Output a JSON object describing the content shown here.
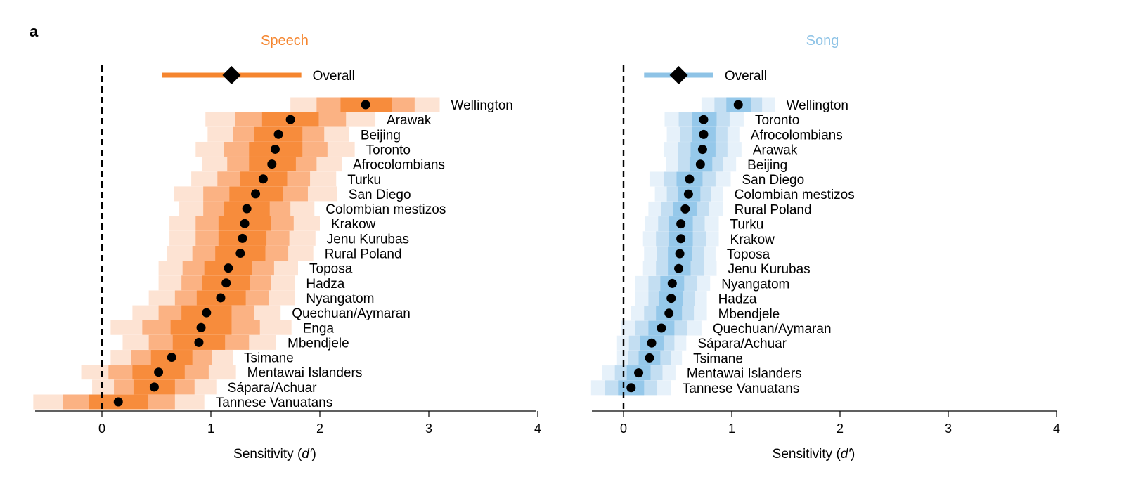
{
  "panel_label": "a",
  "chart_data": [
    {
      "type": "interval",
      "title": "Speech",
      "xlabel": "Sensitivity (d')",
      "xlim": [
        -0.63,
        4
      ],
      "xticks": [
        0,
        1,
        2,
        3,
        4
      ],
      "reference_line_x": 0,
      "color": "#f5852e",
      "overall": {
        "label": "Overall",
        "estimate": 1.19,
        "ci": [
          0.55,
          1.83
        ]
      },
      "series": [
        {
          "label": "Wellington",
          "estimate": 2.42,
          "bands": [
            [
              1.73,
              3.1
            ],
            [
              1.97,
              2.87
            ],
            [
              2.19,
              2.66
            ]
          ]
        },
        {
          "label": "Arawak",
          "estimate": 1.73,
          "bands": [
            [
              0.95,
              2.51
            ],
            [
              1.22,
              2.24
            ],
            [
              1.47,
              1.99
            ]
          ]
        },
        {
          "label": "Beijing",
          "estimate": 1.62,
          "bands": [
            [
              0.97,
              2.27
            ],
            [
              1.2,
              2.04
            ],
            [
              1.4,
              1.84
            ]
          ]
        },
        {
          "label": "Toronto",
          "estimate": 1.59,
          "bands": [
            [
              0.86,
              2.32
            ],
            [
              1.12,
              2.07
            ],
            [
              1.35,
              1.84
            ]
          ]
        },
        {
          "label": "Afrocolombians",
          "estimate": 1.56,
          "bands": [
            [
              0.92,
              2.2
            ],
            [
              1.15,
              1.97
            ],
            [
              1.35,
              1.78
            ]
          ]
        },
        {
          "label": "Turku",
          "estimate": 1.48,
          "bands": [
            [
              0.82,
              2.15
            ],
            [
              1.06,
              1.91
            ],
            [
              1.27,
              1.7
            ]
          ]
        },
        {
          "label": "San Diego",
          "estimate": 1.41,
          "bands": [
            [
              0.66,
              2.16
            ],
            [
              0.93,
              1.89
            ],
            [
              1.17,
              1.66
            ]
          ]
        },
        {
          "label": "Colombian mestizos",
          "estimate": 1.33,
          "bands": [
            [
              0.71,
              1.95
            ],
            [
              0.93,
              1.73
            ],
            [
              1.12,
              1.54
            ]
          ]
        },
        {
          "label": "Krakow",
          "estimate": 1.31,
          "bands": [
            [
              0.62,
              2.0
            ],
            [
              0.86,
              1.76
            ],
            [
              1.07,
              1.55
            ]
          ]
        },
        {
          "label": "Jenu Kurubas",
          "estimate": 1.29,
          "bands": [
            [
              0.62,
              1.96
            ],
            [
              0.86,
              1.72
            ],
            [
              1.07,
              1.51
            ]
          ]
        },
        {
          "label": "Rural Poland",
          "estimate": 1.27,
          "bands": [
            [
              0.6,
              1.94
            ],
            [
              0.83,
              1.71
            ],
            [
              1.04,
              1.5
            ]
          ]
        },
        {
          "label": "Toposa",
          "estimate": 1.16,
          "bands": [
            [
              0.52,
              1.8
            ],
            [
              0.74,
              1.58
            ],
            [
              0.94,
              1.38
            ]
          ]
        },
        {
          "label": "Hadza",
          "estimate": 1.14,
          "bands": [
            [
              0.52,
              1.77
            ],
            [
              0.73,
              1.55
            ],
            [
              0.92,
              1.36
            ]
          ]
        },
        {
          "label": "Nyangatom",
          "estimate": 1.09,
          "bands": [
            [
              0.43,
              1.77
            ],
            [
              0.67,
              1.53
            ],
            [
              0.87,
              1.32
            ]
          ]
        },
        {
          "label": "Quechuan/Aymaran",
          "estimate": 0.96,
          "bands": [
            [
              0.28,
              1.64
            ],
            [
              0.52,
              1.4
            ],
            [
              0.73,
              1.19
            ]
          ]
        },
        {
          "label": "Enga",
          "estimate": 0.91,
          "bands": [
            [
              0.08,
              1.74
            ],
            [
              0.37,
              1.45
            ],
            [
              0.63,
              1.19
            ]
          ]
        },
        {
          "label": "Mbendjele",
          "estimate": 0.89,
          "bands": [
            [
              0.19,
              1.6
            ],
            [
              0.43,
              1.35
            ],
            [
              0.65,
              1.13
            ]
          ]
        },
        {
          "label": "Tsimane",
          "estimate": 0.64,
          "bands": [
            [
              0.08,
              1.2
            ],
            [
              0.27,
              1.01
            ],
            [
              0.45,
              0.83
            ]
          ]
        },
        {
          "label": "Mentawai Islanders",
          "estimate": 0.52,
          "bands": [
            [
              -0.19,
              1.23
            ],
            [
              0.06,
              0.98
            ],
            [
              0.28,
              0.76
            ]
          ]
        },
        {
          "label": "Sápara/Achuar",
          "estimate": 0.48,
          "bands": [
            [
              -0.09,
              1.05
            ],
            [
              0.11,
              0.85
            ],
            [
              0.29,
              0.67
            ]
          ]
        },
        {
          "label": "Tannese Vanuatans",
          "estimate": 0.15,
          "bands": [
            [
              -0.63,
              0.94
            ],
            [
              -0.36,
              0.67
            ],
            [
              -0.12,
              0.42
            ]
          ]
        }
      ]
    },
    {
      "type": "interval",
      "title": "Song",
      "xlabel": "Sensitivity (d')",
      "xlim": [
        -0.3,
        4
      ],
      "xticks": [
        0,
        1,
        2,
        3,
        4
      ],
      "reference_line_x": 0,
      "color": "#8ec3e6",
      "overall": {
        "label": "Overall",
        "estimate": 0.51,
        "ci": [
          0.19,
          0.83
        ]
      },
      "series": [
        {
          "label": "Wellington",
          "estimate": 1.06,
          "bands": [
            [
              0.72,
              1.4
            ],
            [
              0.84,
              1.28
            ],
            [
              0.95,
              1.18
            ]
          ]
        },
        {
          "label": "Toronto",
          "estimate": 0.74,
          "bands": [
            [
              0.38,
              1.11
            ],
            [
              0.51,
              0.98
            ],
            [
              0.63,
              0.86
            ]
          ]
        },
        {
          "label": "Afrocolombians",
          "estimate": 0.74,
          "bands": [
            [
              0.4,
              1.07
            ],
            [
              0.52,
              0.96
            ],
            [
              0.63,
              0.85
            ]
          ]
        },
        {
          "label": "Arawak",
          "estimate": 0.73,
          "bands": [
            [
              0.37,
              1.09
            ],
            [
              0.5,
              0.96
            ],
            [
              0.62,
              0.85
            ]
          ]
        },
        {
          "label": "Beijing",
          "estimate": 0.71,
          "bands": [
            [
              0.39,
              1.04
            ],
            [
              0.5,
              0.92
            ],
            [
              0.61,
              0.82
            ]
          ]
        },
        {
          "label": "San Diego",
          "estimate": 0.61,
          "bands": [
            [
              0.24,
              0.99
            ],
            [
              0.37,
              0.85
            ],
            [
              0.49,
              0.73
            ]
          ]
        },
        {
          "label": "Colombian mestizos",
          "estimate": 0.6,
          "bands": [
            [
              0.29,
              0.92
            ],
            [
              0.4,
              0.81
            ],
            [
              0.5,
              0.71
            ]
          ]
        },
        {
          "label": "Rural Poland",
          "estimate": 0.57,
          "bands": [
            [
              0.23,
              0.92
            ],
            [
              0.35,
              0.79
            ],
            [
              0.46,
              0.68
            ]
          ]
        },
        {
          "label": "Turku",
          "estimate": 0.53,
          "bands": [
            [
              0.2,
              0.88
            ],
            [
              0.32,
              0.75
            ],
            [
              0.42,
              0.64
            ]
          ]
        },
        {
          "label": "Krakow",
          "estimate": 0.53,
          "bands": [
            [
              0.18,
              0.88
            ],
            [
              0.3,
              0.76
            ],
            [
              0.42,
              0.64
            ]
          ]
        },
        {
          "label": "Toposa",
          "estimate": 0.52,
          "bands": [
            [
              0.19,
              0.85
            ],
            [
              0.31,
              0.74
            ],
            [
              0.41,
              0.63
            ]
          ]
        },
        {
          "label": "Jenu Kurubas",
          "estimate": 0.51,
          "bands": [
            [
              0.18,
              0.86
            ],
            [
              0.3,
              0.74
            ],
            [
              0.41,
              0.62
            ]
          ]
        },
        {
          "label": "Nyangatom",
          "estimate": 0.45,
          "bands": [
            [
              0.11,
              0.8
            ],
            [
              0.23,
              0.68
            ],
            [
              0.34,
              0.56
            ]
          ]
        },
        {
          "label": "Hadza",
          "estimate": 0.44,
          "bands": [
            [
              0.11,
              0.77
            ],
            [
              0.23,
              0.66
            ],
            [
              0.33,
              0.55
            ]
          ]
        },
        {
          "label": "Mbendjele",
          "estimate": 0.42,
          "bands": [
            [
              0.07,
              0.77
            ],
            [
              0.19,
              0.65
            ],
            [
              0.3,
              0.54
            ]
          ]
        },
        {
          "label": "Quechuan/Aymaran",
          "estimate": 0.35,
          "bands": [
            [
              -0.02,
              0.72
            ],
            [
              0.11,
              0.59
            ],
            [
              0.23,
              0.47
            ]
          ]
        },
        {
          "label": "Sápara/Achuar",
          "estimate": 0.26,
          "bands": [
            [
              -0.06,
              0.58
            ],
            [
              0.05,
              0.47
            ],
            [
              0.15,
              0.37
            ]
          ]
        },
        {
          "label": "Tsimane",
          "estimate": 0.24,
          "bands": [
            [
              -0.06,
              0.54
            ],
            [
              0.04,
              0.44
            ],
            [
              0.14,
              0.34
            ]
          ]
        },
        {
          "label": "Mentawai Islanders",
          "estimate": 0.14,
          "bands": [
            [
              -0.2,
              0.48
            ],
            [
              -0.08,
              0.36
            ],
            [
              0.03,
              0.25
            ]
          ]
        },
        {
          "label": "Tannese Vanuatans",
          "estimate": 0.07,
          "bands": [
            [
              -0.3,
              0.44
            ],
            [
              -0.17,
              0.31
            ],
            [
              -0.05,
              0.19
            ]
          ]
        }
      ]
    }
  ]
}
